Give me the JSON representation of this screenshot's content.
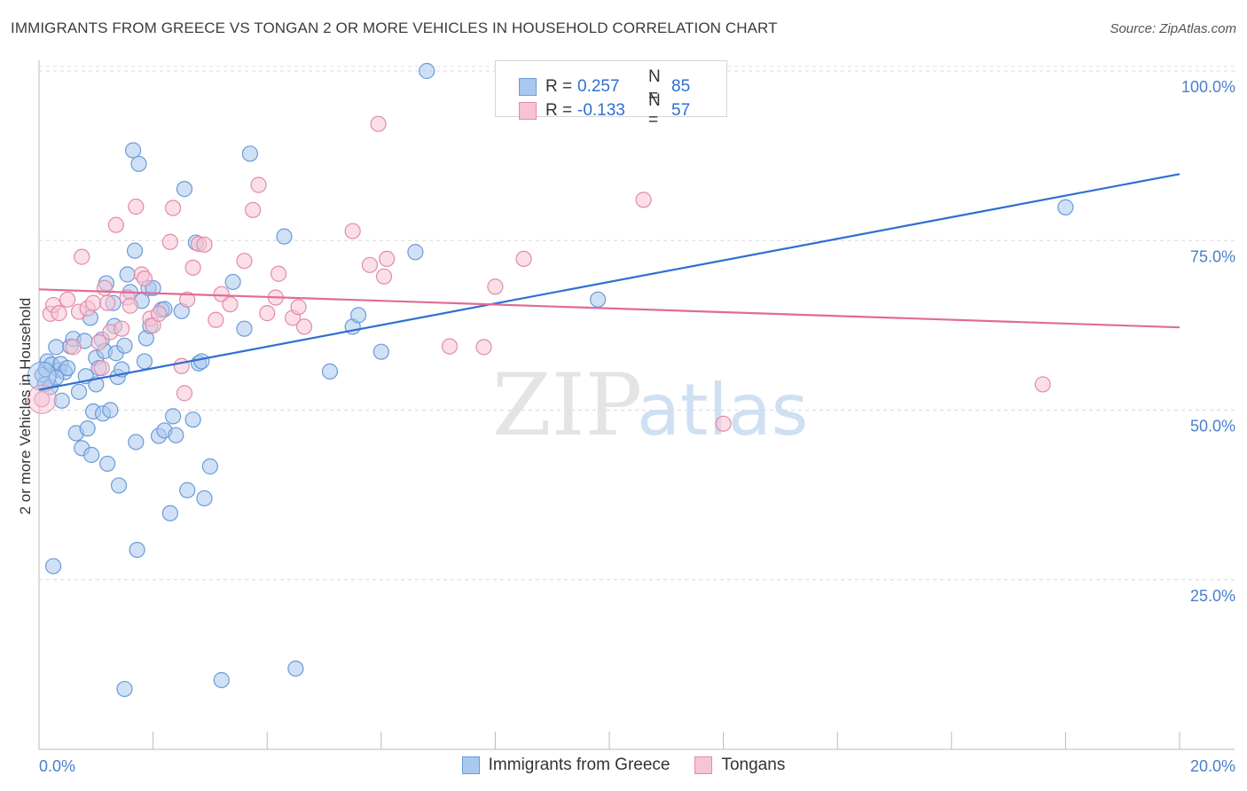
{
  "title": "IMMIGRANTS FROM GREECE VS TONGAN 2 OR MORE VEHICLES IN HOUSEHOLD CORRELATION CHART",
  "source": "Source: ZipAtlas.com",
  "watermark": {
    "zip": "ZIP",
    "atlas": "atlas"
  },
  "legend_top": [
    {
      "r_label": "R =",
      "r_value": "0.257",
      "n_label": "N =",
      "n_value": "85",
      "color": "#a9c8ef",
      "border": "#6b9ad8"
    },
    {
      "r_label": "R =",
      "r_value": "-0.133",
      "n_label": "N =",
      "n_value": "57",
      "color": "#f6c4d3",
      "border": "#e58aa8"
    }
  ],
  "chart_data": {
    "type": "scatter",
    "title": "IMMIGRANTS FROM GREECE VS TONGAN 2 OR MORE VEHICLES IN HOUSEHOLD CORRELATION CHART",
    "xlabel": "",
    "ylabel": "2 or more Vehicles in Household",
    "xlim": [
      0,
      20
    ],
    "ylim": [
      0,
      100
    ],
    "x_tick_labels": [
      "0.0%",
      "20.0%"
    ],
    "y_ticks": [
      25,
      50,
      75,
      100
    ],
    "y_tick_labels": [
      "25.0%",
      "50.0%",
      "75.0%",
      "100.0%"
    ],
    "grid": true,
    "legend_position": "bottom",
    "series": [
      {
        "name": "Immigrants from Greece",
        "color": "#6b9ad8",
        "fill": "#a9c8ef",
        "trend": {
          "x": [
            0,
            20
          ],
          "y": [
            53.0,
            84.8
          ]
        },
        "points": [
          [
            0.06,
            55.2
          ],
          [
            0.1,
            53.8
          ],
          [
            0.12,
            56.0
          ],
          [
            0.15,
            57.2
          ],
          [
            0.2,
            53.4
          ],
          [
            0.22,
            56.7
          ],
          [
            0.25,
            27.0
          ],
          [
            0.3,
            59.3
          ],
          [
            0.35,
            55.9
          ],
          [
            0.38,
            56.8
          ],
          [
            0.4,
            51.4
          ],
          [
            0.45,
            55.6
          ],
          [
            0.5,
            56.2
          ],
          [
            0.55,
            59.4
          ],
          [
            0.6,
            60.5
          ],
          [
            0.65,
            46.6
          ],
          [
            0.7,
            52.7
          ],
          [
            0.75,
            44.4
          ],
          [
            0.8,
            60.2
          ],
          [
            0.82,
            55.0
          ],
          [
            0.85,
            47.3
          ],
          [
            0.9,
            63.6
          ],
          [
            0.92,
            43.4
          ],
          [
            0.95,
            49.8
          ],
          [
            1.0,
            57.7
          ],
          [
            1.05,
            56.2
          ],
          [
            1.1,
            60.4
          ],
          [
            1.12,
            49.5
          ],
          [
            1.15,
            58.7
          ],
          [
            1.18,
            68.7
          ],
          [
            1.2,
            42.1
          ],
          [
            1.25,
            50.0
          ],
          [
            1.3,
            65.8
          ],
          [
            1.32,
            62.4
          ],
          [
            1.35,
            58.4
          ],
          [
            1.38,
            54.9
          ],
          [
            1.4,
            38.9
          ],
          [
            1.45,
            56.0
          ],
          [
            1.5,
            59.5
          ],
          [
            1.55,
            70.0
          ],
          [
            1.6,
            67.4
          ],
          [
            1.65,
            88.3
          ],
          [
            1.68,
            73.5
          ],
          [
            1.7,
            45.3
          ],
          [
            1.72,
            29.4
          ],
          [
            1.75,
            86.3
          ],
          [
            1.8,
            66.1
          ],
          [
            1.85,
            57.2
          ],
          [
            1.88,
            60.6
          ],
          [
            1.92,
            68.0
          ],
          [
            1.95,
            62.4
          ],
          [
            2.0,
            68.0
          ],
          [
            2.1,
            46.2
          ],
          [
            2.15,
            64.8
          ],
          [
            2.2,
            47.0
          ],
          [
            2.3,
            34.8
          ],
          [
            2.35,
            49.1
          ],
          [
            2.4,
            46.3
          ],
          [
            2.5,
            64.6
          ],
          [
            2.55,
            82.6
          ],
          [
            2.6,
            38.2
          ],
          [
            2.7,
            48.6
          ],
          [
            2.75,
            74.7
          ],
          [
            2.8,
            56.9
          ],
          [
            2.85,
            57.2
          ],
          [
            2.9,
            37.0
          ],
          [
            3.0,
            41.7
          ],
          [
            3.2,
            10.2
          ],
          [
            3.4,
            68.9
          ],
          [
            3.6,
            62.0
          ],
          [
            3.7,
            87.8
          ],
          [
            4.3,
            75.6
          ],
          [
            4.5,
            11.9
          ],
          [
            5.1,
            55.7
          ],
          [
            5.5,
            62.3
          ],
          [
            5.6,
            64.0
          ],
          [
            6.0,
            58.6
          ],
          [
            6.6,
            73.3
          ],
          [
            6.8,
            100.0
          ],
          [
            9.8,
            66.3
          ],
          [
            18.0,
            79.9
          ],
          [
            2.2,
            64.9
          ],
          [
            1.0,
            53.8
          ],
          [
            0.3,
            54.8
          ],
          [
            1.5,
            8.9
          ]
        ]
      },
      {
        "name": "Tongans",
        "color": "#e58aa8",
        "fill": "#f6c4d3",
        "trend": {
          "x": [
            0,
            20
          ],
          "y": [
            67.8,
            62.2
          ]
        },
        "points": [
          [
            0.05,
            51.6
          ],
          [
            0.2,
            64.2
          ],
          [
            0.25,
            65.5
          ],
          [
            0.35,
            64.3
          ],
          [
            0.5,
            66.3
          ],
          [
            0.6,
            59.3
          ],
          [
            0.7,
            64.5
          ],
          [
            0.75,
            72.6
          ],
          [
            0.85,
            65.0
          ],
          [
            0.95,
            65.8
          ],
          [
            1.05,
            60.0
          ],
          [
            1.1,
            56.2
          ],
          [
            1.15,
            68.0
          ],
          [
            1.2,
            65.8
          ],
          [
            1.25,
            61.5
          ],
          [
            1.35,
            77.3
          ],
          [
            1.45,
            62.0
          ],
          [
            1.55,
            66.6
          ],
          [
            1.6,
            65.4
          ],
          [
            1.7,
            80.0
          ],
          [
            1.8,
            70.0
          ],
          [
            1.85,
            69.4
          ],
          [
            1.95,
            63.5
          ],
          [
            2.0,
            62.5
          ],
          [
            2.1,
            64.2
          ],
          [
            2.3,
            74.8
          ],
          [
            2.35,
            79.8
          ],
          [
            2.5,
            56.5
          ],
          [
            2.55,
            52.5
          ],
          [
            2.6,
            66.3
          ],
          [
            2.7,
            71.0
          ],
          [
            2.8,
            74.5
          ],
          [
            2.9,
            74.4
          ],
          [
            3.1,
            63.3
          ],
          [
            3.2,
            67.1
          ],
          [
            3.35,
            65.6
          ],
          [
            3.6,
            72.0
          ],
          [
            3.75,
            79.5
          ],
          [
            3.85,
            83.2
          ],
          [
            4.0,
            64.3
          ],
          [
            4.15,
            66.6
          ],
          [
            4.2,
            70.1
          ],
          [
            4.45,
            63.6
          ],
          [
            4.55,
            65.2
          ],
          [
            4.65,
            62.3
          ],
          [
            5.5,
            76.4
          ],
          [
            5.8,
            71.4
          ],
          [
            5.95,
            92.2
          ],
          [
            6.05,
            69.7
          ],
          [
            6.1,
            72.3
          ],
          [
            7.2,
            59.4
          ],
          [
            7.8,
            59.3
          ],
          [
            8.0,
            68.2
          ],
          [
            8.5,
            72.3
          ],
          [
            10.6,
            81.0
          ],
          [
            12.0,
            48.0
          ],
          [
            17.6,
            53.8
          ]
        ]
      }
    ]
  },
  "legend_bottom": [
    {
      "label": "Immigrants from Greece",
      "color": "#a9c8ef",
      "border": "#6b9ad8"
    },
    {
      "label": "Tongans",
      "color": "#f6c4d3",
      "border": "#e58aa8"
    }
  ]
}
